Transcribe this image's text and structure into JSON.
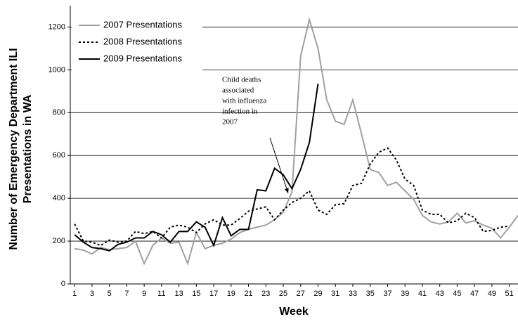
{
  "chart_data": {
    "type": "line",
    "x_label": "Week",
    "y_label": [
      "Number of Emergency Department ILI",
      "Presentations in WA"
    ],
    "annotation": [
      "Child deaths",
      "associated",
      "with influenza",
      "infection in",
      "2007"
    ],
    "x": [
      1,
      2,
      3,
      4,
      5,
      6,
      7,
      8,
      9,
      10,
      11,
      12,
      13,
      14,
      15,
      16,
      17,
      18,
      19,
      20,
      21,
      22,
      23,
      24,
      25,
      26,
      27,
      28,
      29,
      30,
      31,
      32,
      33,
      34,
      35,
      36,
      37,
      38,
      39,
      40,
      41,
      42,
      43,
      44,
      45,
      46,
      47,
      48,
      49,
      50,
      51,
      52
    ],
    "xlim": [
      0.5,
      52
    ],
    "xticks": [
      1,
      3,
      5,
      7,
      9,
      11,
      13,
      15,
      17,
      19,
      21,
      23,
      25,
      27,
      29,
      31,
      33,
      35,
      37,
      39,
      41,
      43,
      45,
      47,
      49,
      51
    ],
    "ylim": [
      0,
      1300
    ],
    "yticks": [
      0,
      200,
      400,
      600,
      800,
      1000,
      1200
    ],
    "grid": true,
    "legend": "top-left",
    "series": [
      {
        "name": "2007 Presentations",
        "color": "#a0a0a0",
        "dash": "solid",
        "values": [
          165,
          158,
          140,
          170,
          160,
          165,
          170,
          200,
          95,
          180,
          215,
          190,
          195,
          95,
          240,
          165,
          180,
          190,
          210,
          240,
          255,
          265,
          275,
          300,
          335,
          430,
          1065,
          1235,
          1100,
          860,
          760,
          745,
          860,
          700,
          535,
          520,
          460,
          475,
          435,
          395,
          320,
          290,
          280,
          290,
          330,
          285,
          295,
          275,
          260,
          215,
          265,
          320
        ]
      },
      {
        "name": "2008 Presentations",
        "color": "#000000",
        "dash": "dotted",
        "values": [
          280,
          200,
          195,
          180,
          205,
          195,
          200,
          245,
          235,
          245,
          215,
          265,
          275,
          265,
          240,
          280,
          300,
          275,
          275,
          305,
          340,
          350,
          360,
          300,
          345,
          380,
          400,
          435,
          345,
          325,
          370,
          375,
          460,
          470,
          560,
          615,
          635,
          580,
          490,
          460,
          345,
          325,
          325,
          285,
          295,
          330,
          310,
          245,
          250,
          265,
          270,
          null
        ]
      },
      {
        "name": "2009 Presentations",
        "color": "#000000",
        "dash": "solid",
        "values": [
          230,
          195,
          170,
          165,
          155,
          185,
          195,
          215,
          215,
          245,
          230,
          195,
          245,
          245,
          290,
          265,
          180,
          310,
          225,
          255,
          255,
          440,
          435,
          540,
          510,
          445,
          535,
          660,
          935,
          null,
          null,
          null,
          null,
          null,
          null,
          null,
          null,
          null,
          null,
          null,
          null,
          null,
          null,
          null,
          null,
          null,
          null,
          null,
          null,
          null,
          null,
          null
        ]
      }
    ]
  }
}
